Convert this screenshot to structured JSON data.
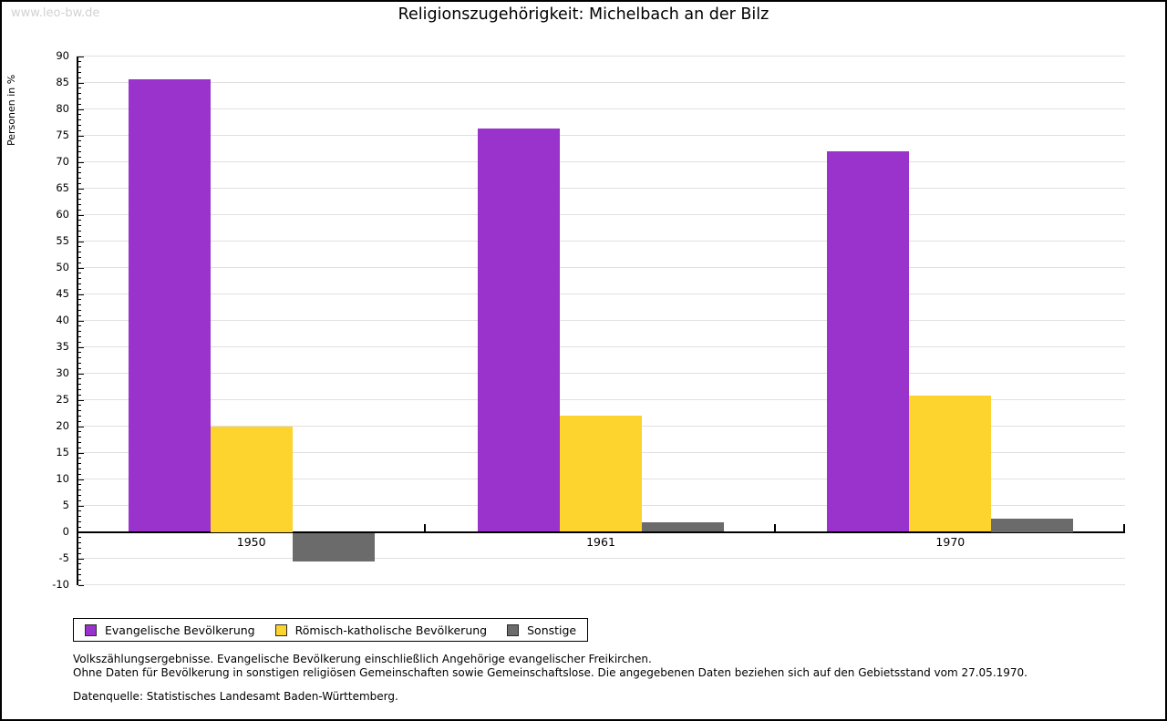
{
  "watermark": "www.leo-bw.de",
  "chart_data": {
    "type": "bar",
    "title": "Religionszugehörigkeit: Michelbach an der Bilz",
    "ylabel": "Personen in %",
    "categories": [
      "1950",
      "1961",
      "1970"
    ],
    "series": [
      {
        "name": "Evangelische Bevölkerung",
        "color": "#9933CC",
        "values": [
          85.6,
          76.3,
          72.0
        ]
      },
      {
        "name": "Römisch-katholische Bevölkerung",
        "color": "#FDD32E",
        "values": [
          20.0,
          22.0,
          25.7
        ]
      },
      {
        "name": "Sonstige",
        "color": "#6B6B6B",
        "values": [
          -5.5,
          1.8,
          2.5
        ]
      }
    ],
    "ylim": [
      -10,
      90
    ],
    "ytick_step": 5,
    "minor_tick_step": 1,
    "grid": true,
    "legend_position": "bottom"
  },
  "footnotes": {
    "line1": "Volkszählungsergebnisse. Evangelische Bevölkerung einschließlich Angehörige evangelischer Freikirchen.",
    "line2": "Ohne Daten für Bevölkerung in sonstigen religiösen Gemeinschaften sowie Gemeinschaftslose. Die angegebenen Daten beziehen sich auf den Gebietsstand vom 27.05.1970.",
    "source": "Datenquelle: Statistisches Landesamt Baden-Württemberg."
  },
  "colors": {
    "grid": "#E0E0E0",
    "axis": "#000000",
    "watermark": "#D2D2D2"
  }
}
